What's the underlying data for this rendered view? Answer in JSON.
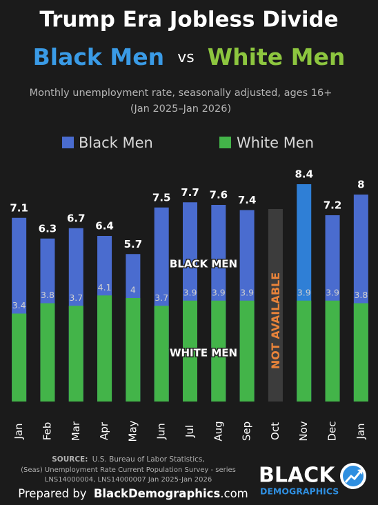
{
  "chart_data": {
    "type": "overlap-bar",
    "title": "Trump Era Jobless Divide",
    "title_parts": [
      "Black Men",
      "vs",
      "White Men"
    ],
    "note": [
      "Monthly unemployment rate, seasonally adjusted, ages 16+",
      "(Jan 2025–Jan 2026)"
    ],
    "categories": [
      "Jan",
      "Feb",
      "Mar",
      "Apr",
      "May",
      "Jun",
      "Jul",
      "Aug",
      "Sep",
      "Oct",
      "Nov",
      "Dec",
      "Jan"
    ],
    "series": [
      {
        "name": "Black Men",
        "color": "#4a6ccf",
        "colors": [
          "#4a6ccf",
          "#4a6ccf",
          "#4a6ccf",
          "#4a6ccf",
          "#4a6ccf",
          "#4a6ccf",
          "#4a6ccf",
          "#4a6ccf",
          "#4a6ccf",
          "#4a6ccf",
          "#2f7fd6",
          "#4a6ccf",
          "#4a6ccf"
        ],
        "values": [
          7.1,
          6.3,
          6.7,
          6.4,
          5.7,
          7.5,
          7.7,
          7.6,
          7.4,
          null,
          8.4,
          7.2,
          8
        ]
      },
      {
        "name": "White Men",
        "color": "#43b449",
        "values": [
          3.4,
          3.8,
          3.7,
          4.1,
          4,
          3.7,
          3.9,
          3.9,
          3.9,
          null,
          3.9,
          3.9,
          3.8
        ]
      }
    ],
    "annotations": [
      "BLACK MEN",
      "WHITE MEN",
      "NOT AVAILABLE"
    ],
    "ylim": [
      0,
      8.4
    ]
  },
  "footer": {
    "source_label": "SOURCE:",
    "source": [
      "U.S. Bureau of Labor Statistics,",
      "(Seas) Unemployment Rate Current Population Survey - series",
      "LNS14000004, LNS14000007 Jan 2025-Jan 2026"
    ],
    "prepared": [
      "Prepared by",
      "BlackDemographics",
      ".com"
    ],
    "logo": [
      "BLACK",
      "DEMOGRAPHICS"
    ]
  }
}
